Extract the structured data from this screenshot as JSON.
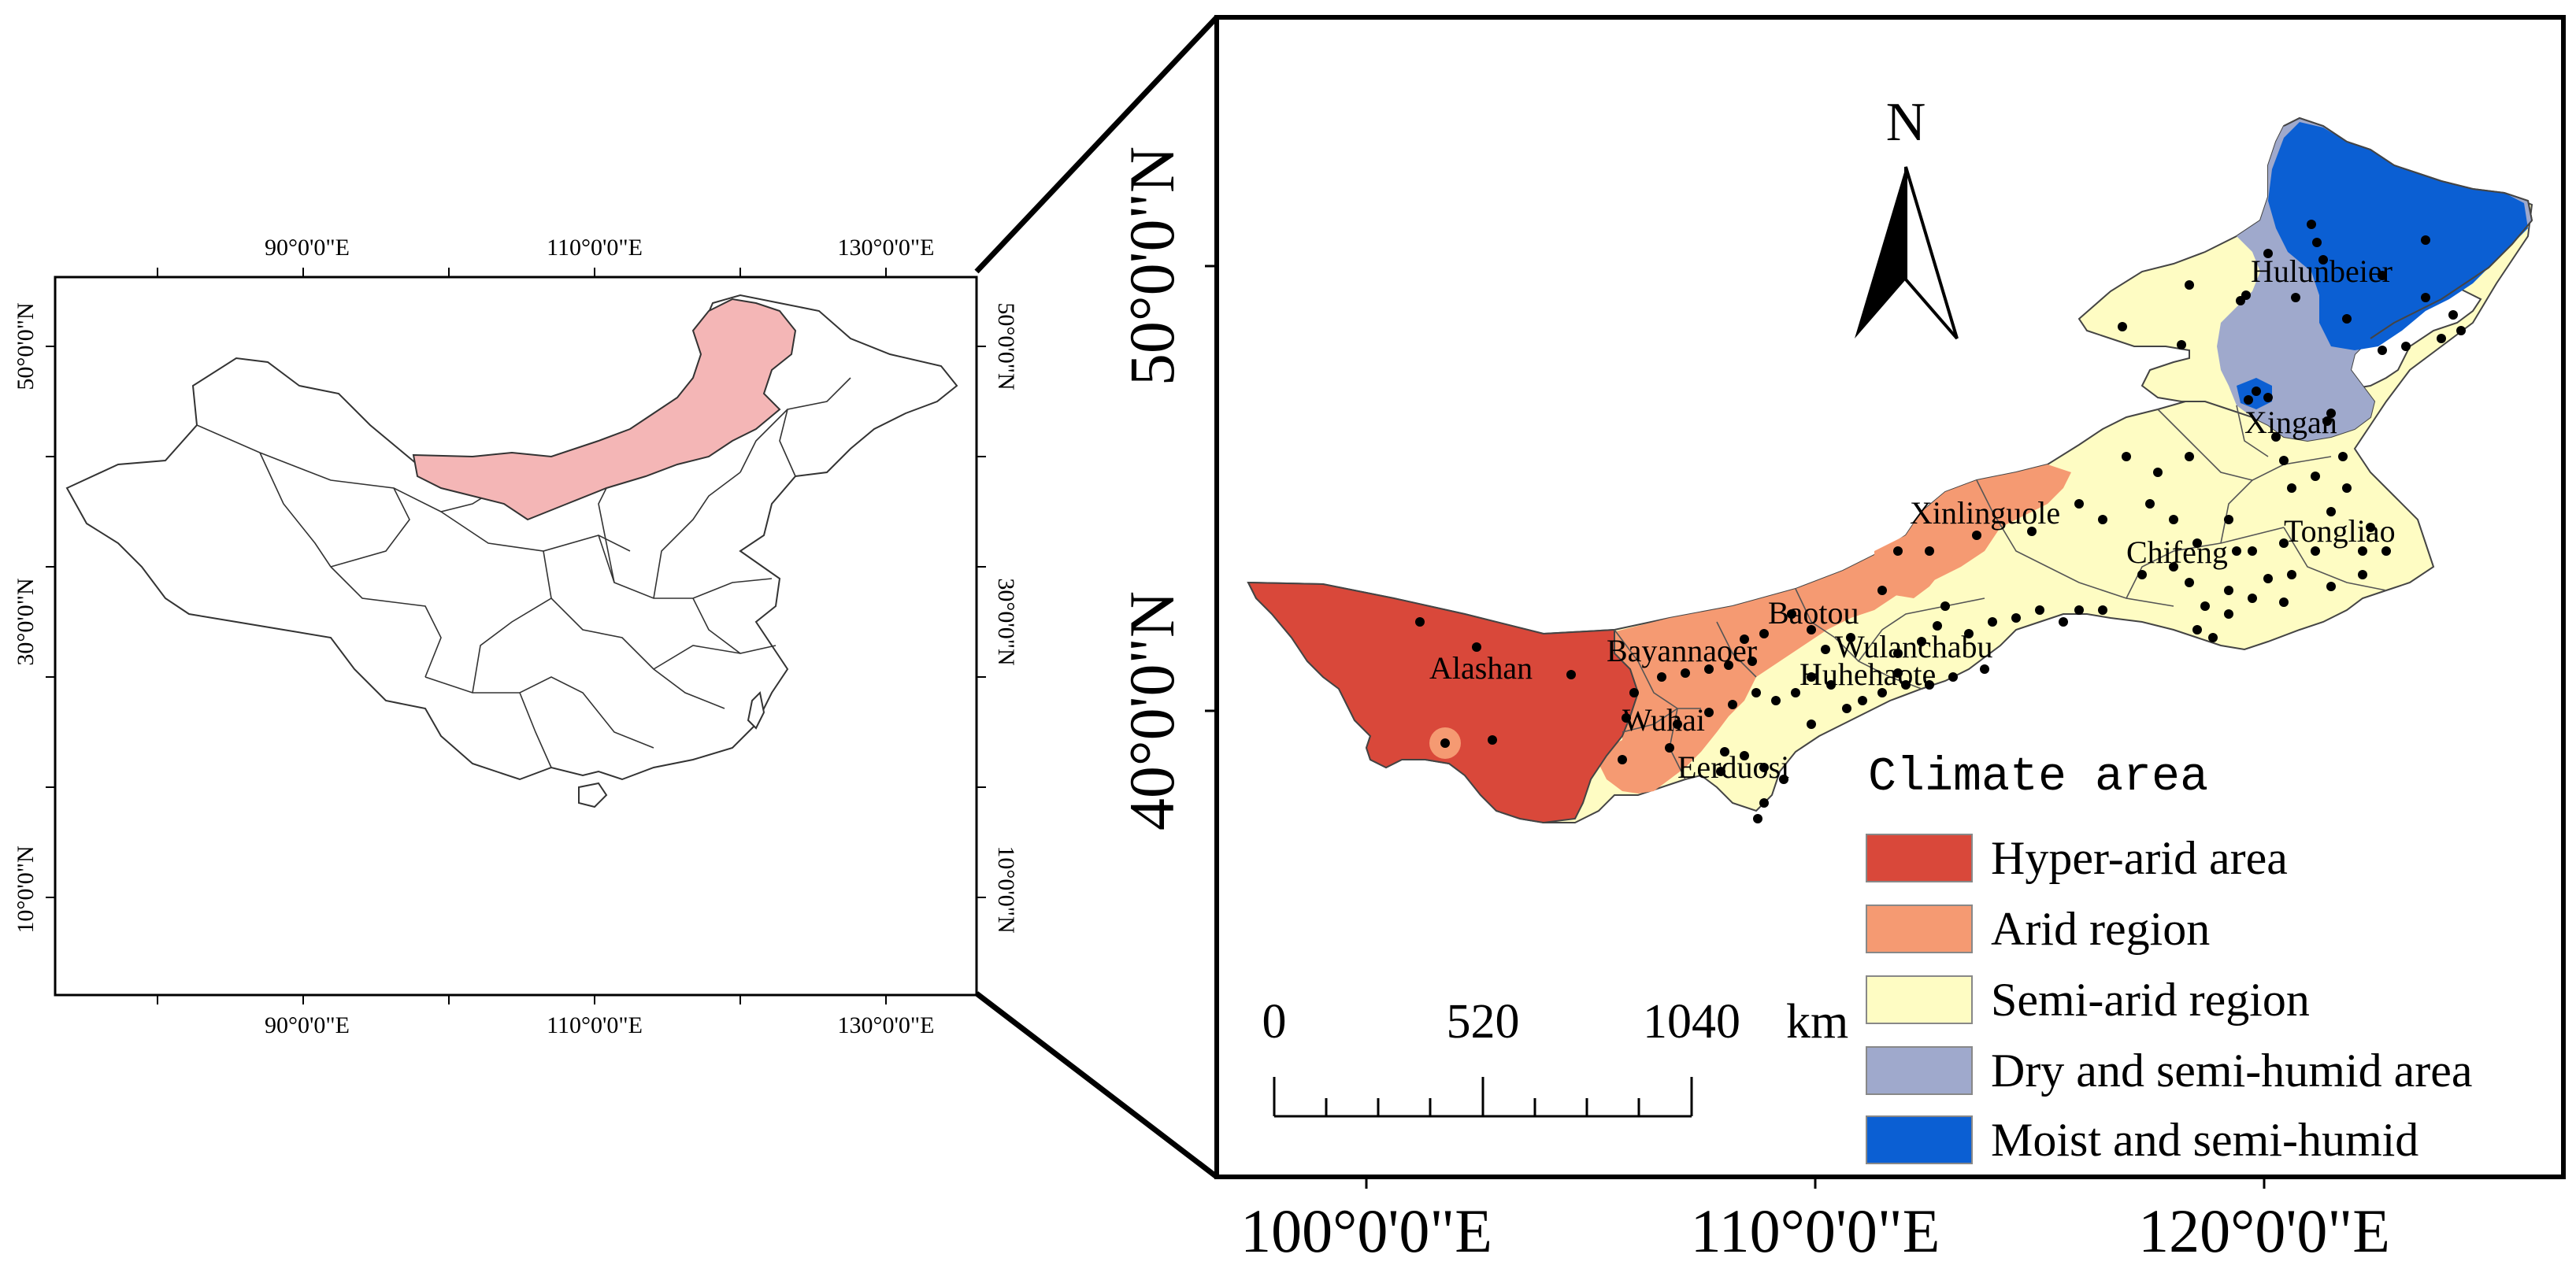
{
  "overview_map": {
    "top_ticks": [
      "90°0'0\"E",
      "110°0'0\"E",
      "130°0'0\"E"
    ],
    "bottom_ticks": [
      "90°0'0\"E",
      "110°0'0\"E",
      "130°0'0\"E"
    ],
    "left_ticks": [
      "50°0'0\"N",
      "30°0'0\"N",
      "10°0'0\"N"
    ],
    "right_ticks": [
      "50°0'0\"N",
      "30°0'0\"N",
      "10°0'0\"N"
    ],
    "highlight_color": "#f4b6b6"
  },
  "detail_map": {
    "left_ticks": [
      "50°0'0\"N",
      "40°0'0\"N"
    ],
    "bottom_ticks": [
      "100°0'0\"E",
      "110°0'0\"E",
      "120°0'0\"E"
    ],
    "north_arrow_label": "N",
    "cities": [
      "Hulunbeier",
      "Xingan",
      "Xinlinguole",
      "Tongliao",
      "Chifeng",
      "Baotou",
      "Wulanchabu",
      "Huhehaote",
      "Bayannaoer",
      "Alashan",
      "Wuhai",
      "Eerduosi"
    ],
    "scale_bar": {
      "labels": [
        "0",
        "520",
        "1040"
      ],
      "unit": "km"
    }
  },
  "legend": {
    "title": "Climate area",
    "items": [
      {
        "label": "Hyper-arid area",
        "color": "#d9483a"
      },
      {
        "label": "Arid region",
        "color": "#f59a72"
      },
      {
        "label": "Semi-arid region",
        "color": "#fefcc3"
      },
      {
        "label": "Dry and semi-humid area",
        "color": "#9fa9cc"
      },
      {
        "label": "Moist and semi-humid",
        "color": "#0b5fd3"
      }
    ]
  }
}
